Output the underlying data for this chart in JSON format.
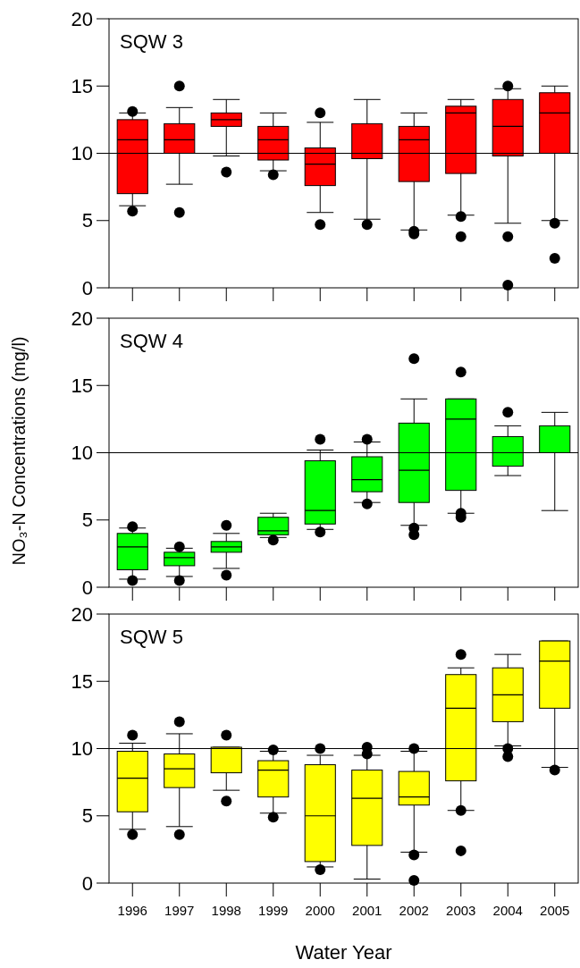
{
  "chart_data": [
    {
      "type": "box",
      "title": "SQW 3",
      "categories": [
        "1996",
        "1997",
        "1998",
        "1999",
        "2000",
        "2001",
        "2002",
        "2003",
        "2004",
        "2005"
      ],
      "color": "#ff0000",
      "ylim": [
        0,
        20
      ],
      "yticks": [
        0,
        5,
        10,
        15,
        20
      ],
      "tick_labels": "y",
      "ref_lines": [
        {
          "axis": "y",
          "value": 10
        }
      ],
      "boxes": [
        {
          "low": 6.1,
          "q1": 7.0,
          "median": 11.0,
          "q3": 12.5,
          "high": 13.0,
          "outliers": [
            13.1,
            5.7
          ]
        },
        {
          "low": 7.7,
          "q1": 10.0,
          "median": 11.0,
          "q3": 12.2,
          "high": 13.4,
          "outliers": [
            15.0,
            5.6
          ]
        },
        {
          "low": 9.8,
          "q1": 12.0,
          "median": 12.5,
          "q3": 13.0,
          "high": 14.0,
          "outliers": [
            8.6
          ]
        },
        {
          "low": 8.7,
          "q1": 9.5,
          "median": 11.0,
          "q3": 12.0,
          "high": 13.0,
          "outliers": [
            8.4
          ]
        },
        {
          "low": 5.6,
          "q1": 7.6,
          "median": 9.2,
          "q3": 10.4,
          "high": 12.3,
          "outliers": [
            13.0,
            4.7
          ]
        },
        {
          "low": 5.1,
          "q1": 9.6,
          "median": 10.0,
          "q3": 12.2,
          "high": 14.0,
          "outliers": [
            4.7
          ]
        },
        {
          "low": 4.3,
          "q1": 7.9,
          "median": 11.0,
          "q3": 12.0,
          "high": 13.0,
          "outliers": [
            4.2,
            4.0
          ]
        },
        {
          "low": 5.4,
          "q1": 8.5,
          "median": 13.0,
          "q3": 13.5,
          "high": 14.0,
          "outliers": [
            5.3,
            3.8
          ]
        },
        {
          "low": 4.8,
          "q1": 9.8,
          "median": 12.0,
          "q3": 14.0,
          "high": 14.8,
          "outliers": [
            15.0,
            3.8,
            0.2
          ]
        },
        {
          "low": 5.0,
          "q1": 10.0,
          "median": 13.0,
          "q3": 14.5,
          "high": 15.0,
          "outliers": [
            4.8,
            2.2
          ]
        }
      ]
    },
    {
      "type": "box",
      "title": "SQW 4",
      "ylabel": "NO₃-N Concentrations (mg/l)",
      "categories": [
        "1996",
        "1997",
        "1998",
        "1999",
        "2000",
        "2001",
        "2002",
        "2003",
        "2004",
        "2005"
      ],
      "color": "#00ff00",
      "ylim": [
        0,
        20
      ],
      "yticks": [
        0,
        5,
        10,
        15,
        20
      ],
      "tick_labels": "y",
      "ref_lines": [
        {
          "axis": "y",
          "value": 10
        }
      ],
      "boxes": [
        {
          "low": 0.6,
          "q1": 1.3,
          "median": 3.0,
          "q3": 4.0,
          "high": 4.4,
          "outliers": [
            4.5,
            0.5
          ]
        },
        {
          "low": 0.8,
          "q1": 1.6,
          "median": 2.2,
          "q3": 2.6,
          "high": 2.9,
          "outliers": [
            3.0,
            0.5
          ]
        },
        {
          "low": 1.4,
          "q1": 2.6,
          "median": 3.0,
          "q3": 3.4,
          "high": 4.0,
          "outliers": [
            4.6,
            0.9
          ]
        },
        {
          "low": 3.7,
          "q1": 3.9,
          "median": 4.2,
          "q3": 5.2,
          "high": 5.5,
          "outliers": [
            3.5
          ]
        },
        {
          "low": 4.3,
          "q1": 4.7,
          "median": 5.7,
          "q3": 9.4,
          "high": 10.2,
          "outliers": [
            11.0,
            4.1
          ]
        },
        {
          "low": 6.3,
          "q1": 7.1,
          "median": 8.0,
          "q3": 9.7,
          "high": 10.8,
          "outliers": [
            11.0,
            6.2
          ]
        },
        {
          "low": 4.6,
          "q1": 6.3,
          "median": 8.7,
          "q3": 12.2,
          "high": 14.0,
          "outliers": [
            17.0,
            4.4,
            3.9
          ]
        },
        {
          "low": 5.5,
          "q1": 7.2,
          "median": 12.5,
          "q3": 14.0,
          "high": 14.0,
          "outliers": [
            16.0,
            5.5,
            5.2
          ]
        },
        {
          "low": 8.3,
          "q1": 9.0,
          "median": 10.0,
          "q3": 11.2,
          "high": 12.0,
          "outliers": [
            13.0
          ]
        },
        {
          "low": 5.7,
          "q1": 10.0,
          "median": 10.0,
          "q3": 12.0,
          "high": 13.0
        }
      ]
    },
    {
      "type": "box",
      "title": "SQW 5",
      "xlabel": "Water Year",
      "categories": [
        "1996",
        "1997",
        "1998",
        "1999",
        "2000",
        "2001",
        "2002",
        "2003",
        "2004",
        "2005"
      ],
      "color": "#ffff00",
      "ylim": [
        0,
        20
      ],
      "yticks": [
        0,
        5,
        10,
        15,
        20
      ],
      "ref_lines": [
        {
          "axis": "y",
          "value": 10
        }
      ],
      "boxes": [
        {
          "low": 4.0,
          "q1": 5.3,
          "median": 7.8,
          "q3": 9.8,
          "high": 10.4,
          "outliers": [
            11.0,
            3.6
          ]
        },
        {
          "low": 4.2,
          "q1": 7.1,
          "median": 8.5,
          "q3": 9.6,
          "high": 11.1,
          "outliers": [
            12.0,
            3.6
          ]
        },
        {
          "low": 6.9,
          "q1": 8.2,
          "median": 10.0,
          "q3": 10.1,
          "high": 10.1,
          "outliers": [
            11.0,
            6.1
          ]
        },
        {
          "low": 5.2,
          "q1": 6.4,
          "median": 8.4,
          "q3": 9.1,
          "high": 9.8,
          "outliers": [
            9.9,
            4.9
          ]
        },
        {
          "low": 1.2,
          "q1": 1.6,
          "median": 5.0,
          "q3": 8.8,
          "high": 9.5,
          "outliers": [
            10.0,
            1.0
          ]
        },
        {
          "low": 0.3,
          "q1": 2.8,
          "median": 6.3,
          "q3": 8.4,
          "high": 9.5,
          "outliers": [
            10.1,
            9.6
          ]
        },
        {
          "low": 2.3,
          "q1": 5.8,
          "median": 6.4,
          "q3": 8.3,
          "high": 9.8,
          "outliers": [
            10.0,
            2.1,
            0.2
          ]
        },
        {
          "low": 5.4,
          "q1": 7.6,
          "median": 13.0,
          "q3": 15.5,
          "high": 16.0,
          "outliers": [
            17.0,
            5.4,
            2.4
          ]
        },
        {
          "low": 10.2,
          "q1": 12.0,
          "median": 14.0,
          "q3": 16.0,
          "high": 17.0,
          "outliers": [
            10.0,
            9.4
          ]
        },
        {
          "low": 8.6,
          "q1": 13.0,
          "median": 16.5,
          "q3": 18.0,
          "high": 18.0,
          "outliers": [
            8.4
          ]
        }
      ]
    }
  ]
}
